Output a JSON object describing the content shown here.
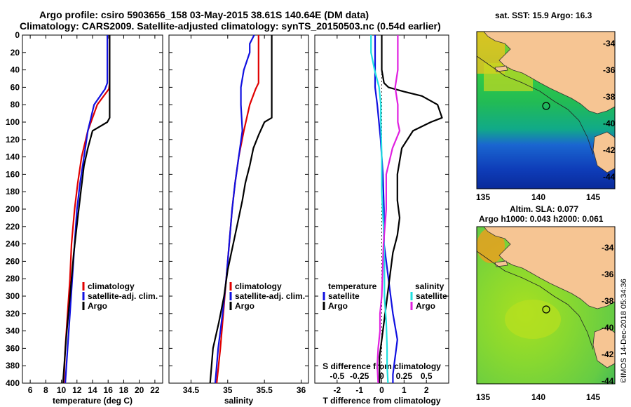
{
  "title": {
    "line1": "Argo profile: csiro 5903656_158 03-May-2015 38.61S 140.64E (DM data)",
    "line2": "Climatology: CARS2009. Satellite-adjusted climatology: synTS_20150503.nc (0.54d earlier)"
  },
  "watermark": "©IMOS 14-Dec-2018 05:34:36",
  "colors": {
    "red": "#e00000",
    "blue": "#1010e0",
    "black": "#000000",
    "cyan": "#20e0e0",
    "magenta": "#e020e0",
    "land": "#f6c593"
  },
  "chart_data": [
    {
      "id": "temperature",
      "type": "line",
      "xlabel": "temperature (deg C)",
      "ylabel": "",
      "xlim": [
        5,
        23
      ],
      "ylim": [
        400,
        0
      ],
      "xticks": [
        "6",
        "8",
        "10",
        "12",
        "14",
        "16",
        "18",
        "20",
        "22"
      ],
      "xtick_values": [
        6,
        8,
        10,
        12,
        14,
        16,
        18,
        20,
        22
      ],
      "yticks": [
        "0",
        "20",
        "40",
        "60",
        "80",
        "100",
        "120",
        "140",
        "160",
        "180",
        "200",
        "220",
        "240",
        "260",
        "280",
        "300",
        "320",
        "340",
        "360",
        "380",
        "400"
      ],
      "ytick_values": [
        0,
        20,
        40,
        60,
        80,
        100,
        120,
        140,
        160,
        180,
        200,
        220,
        240,
        260,
        280,
        300,
        320,
        340,
        360,
        380,
        400
      ],
      "legend": [
        "climatology",
        "satellite-adj. clim.",
        "Argo"
      ],
      "series": [
        {
          "name": "climatology",
          "color": "#e00000",
          "x": [
            16.2,
            16.2,
            16.2,
            16.2,
            16.1,
            14.6,
            13.4,
            12.6,
            12.1,
            11.7,
            11.3,
            11.1,
            10.8,
            10.5,
            10.3
          ],
          "y": [
            0,
            20,
            40,
            55,
            62,
            80,
            110,
            140,
            170,
            200,
            240,
            280,
            320,
            360,
            400
          ]
        },
        {
          "name": "satellite-adj. clim.",
          "color": "#1010e0",
          "x": [
            15.9,
            15.9,
            15.9,
            15.9,
            15.6,
            14.2,
            13.4,
            12.9,
            12.4,
            12.0,
            11.7,
            11.4,
            11.1,
            10.8,
            10.5
          ],
          "y": [
            0,
            20,
            40,
            55,
            62,
            80,
            110,
            140,
            170,
            200,
            240,
            280,
            320,
            360,
            400
          ]
        },
        {
          "name": "Argo",
          "color": "#000000",
          "x": [
            16.2,
            16.2,
            16.2,
            16.2,
            16.2,
            16.2,
            16.2,
            15.9,
            14.0,
            13.4,
            12.9,
            12.5,
            12.1,
            11.6,
            11.1,
            10.6,
            10.2
          ],
          "y": [
            0,
            20,
            40,
            60,
            80,
            90,
            95,
            100,
            110,
            130,
            150,
            180,
            210,
            250,
            300,
            350,
            400
          ]
        }
      ]
    },
    {
      "id": "salinity",
      "type": "line",
      "xlabel": "salinity",
      "ylabel": "",
      "xlim": [
        34.2,
        36.1
      ],
      "ylim": [
        400,
        0
      ],
      "xticks": [
        "34.5",
        "35",
        "35.5",
        "36"
      ],
      "xtick_values": [
        34.5,
        35,
        35.5,
        36
      ],
      "legend": [
        "climatology",
        "satellite-adj. clim.",
        "Argo"
      ],
      "series": [
        {
          "name": "climatology",
          "color": "#e00000",
          "x": [
            35.42,
            35.42,
            35.42,
            35.42,
            35.38,
            35.3,
            35.22,
            35.15,
            35.1,
            35.06,
            35.02,
            34.98,
            34.94,
            34.9,
            34.85
          ],
          "y": [
            0,
            20,
            40,
            55,
            62,
            80,
            110,
            140,
            170,
            200,
            240,
            280,
            320,
            360,
            400
          ]
        },
        {
          "name": "satellite-adj. clim.",
          "color": "#1010e0",
          "x": [
            35.36,
            35.3,
            35.3,
            35.22,
            35.18,
            35.18,
            35.2,
            35.15,
            35.1,
            35.06,
            35.02,
            34.98,
            34.93,
            34.87,
            34.83
          ],
          "y": [
            0,
            10,
            20,
            40,
            60,
            80,
            110,
            140,
            170,
            200,
            240,
            280,
            320,
            360,
            400
          ]
        },
        {
          "name": "Argo",
          "color": "#000000",
          "x": [
            35.6,
            35.6,
            35.6,
            35.6,
            35.6,
            35.6,
            35.5,
            35.42,
            35.35,
            35.3,
            35.24,
            35.2,
            35.15,
            35.1,
            35.05,
            35.0,
            34.95,
            34.88,
            34.8,
            34.76
          ],
          "y": [
            0,
            20,
            40,
            60,
            80,
            95,
            100,
            115,
            130,
            150,
            170,
            190,
            210,
            230,
            250,
            270,
            300,
            330,
            360,
            400
          ]
        }
      ]
    },
    {
      "id": "difference",
      "type": "line",
      "xlabel": "T difference from climatology",
      "ylabel": "",
      "xlim": [
        -3,
        3
      ],
      "ylim": [
        400,
        0
      ],
      "xticks": [
        "-2",
        "-1",
        "0",
        "1",
        "2"
      ],
      "xtick_values": [
        -2,
        -1,
        0,
        1,
        2
      ],
      "x2label": "S difference from climatology",
      "x2ticks": [
        "-0.5",
        "-0.25",
        "0",
        "0.25",
        "0.5"
      ],
      "x2tick_values": [
        -0.5,
        -0.25,
        0,
        0.25,
        0.5
      ],
      "legend_left_title": "temperature",
      "legend_right_title": "salinity",
      "legend": [
        "satellite",
        "Argo",
        "satellite",
        "Argo"
      ],
      "series": [
        {
          "name": "T satellite",
          "color": "#1010e0",
          "x": [
            -0.3,
            -0.3,
            -0.3,
            -0.3,
            -0.2,
            -0.05,
            0.05,
            0.1,
            0.1,
            0.2,
            0.3,
            0.4,
            0.5,
            0.7,
            0.6,
            0.5,
            0.5
          ],
          "y": [
            0,
            20,
            40,
            60,
            80,
            120,
            160,
            200,
            240,
            260,
            280,
            300,
            320,
            350,
            370,
            390,
            400
          ]
        },
        {
          "name": "T Argo",
          "color": "#000000",
          "x": [
            0,
            0,
            0,
            0.1,
            0.3,
            1.0,
            1.8,
            2.5,
            2.7,
            2.2,
            1.4,
            0.9,
            0.7,
            0.7,
            0.8,
            0.7,
            0.5,
            0.4,
            0.3,
            0.2,
            0.1,
            0,
            -0.1,
            -0.1
          ],
          "y": [
            0,
            20,
            40,
            55,
            60,
            65,
            70,
            80,
            95,
            100,
            110,
            130,
            160,
            190,
            210,
            230,
            250,
            270,
            290,
            310,
            330,
            350,
            370,
            400
          ]
        },
        {
          "name": "S satellite",
          "color": "#20e0e0",
          "x": [
            -0.12,
            -0.12,
            -0.08,
            -0.03,
            -0.01,
            -0.01,
            0,
            0,
            0.02,
            0.03,
            0.03,
            0.05,
            0.06,
            0.06,
            0.07
          ],
          "y": [
            0,
            20,
            40,
            60,
            80,
            100,
            140,
            180,
            220,
            260,
            300,
            330,
            360,
            380,
            400
          ]
        },
        {
          "name": "S Argo",
          "color": "#e020e0",
          "x": [
            0.18,
            0.18,
            0.18,
            0.15,
            0.18,
            0.18,
            0.2,
            0.12,
            0.05,
            0.05,
            0.02,
            0.01,
            0.0,
            -0.02,
            -0.02,
            -0.04,
            -0.05,
            -0.04
          ],
          "y": [
            0,
            20,
            40,
            60,
            80,
            100,
            110,
            130,
            160,
            200,
            240,
            270,
            300,
            320,
            340,
            360,
            380,
            400
          ]
        }
      ]
    }
  ],
  "maps": [
    {
      "id": "sst",
      "title": "sat. SST: 15.9 Argo: 16.3",
      "subtitle": "",
      "xticks": [
        "135",
        "140",
        "145"
      ],
      "yticks": [
        "-34",
        "-36",
        "-38",
        "-40",
        "-42",
        "-44"
      ]
    },
    {
      "id": "sla",
      "title": "Altim. SLA: 0.077",
      "subtitle": "Argo h1000: 0.043 h2000: 0.061",
      "xticks": [
        "135",
        "140",
        "145"
      ],
      "yticks": [
        "-34",
        "-36",
        "-38",
        "-40",
        "-42",
        "-44"
      ]
    }
  ]
}
